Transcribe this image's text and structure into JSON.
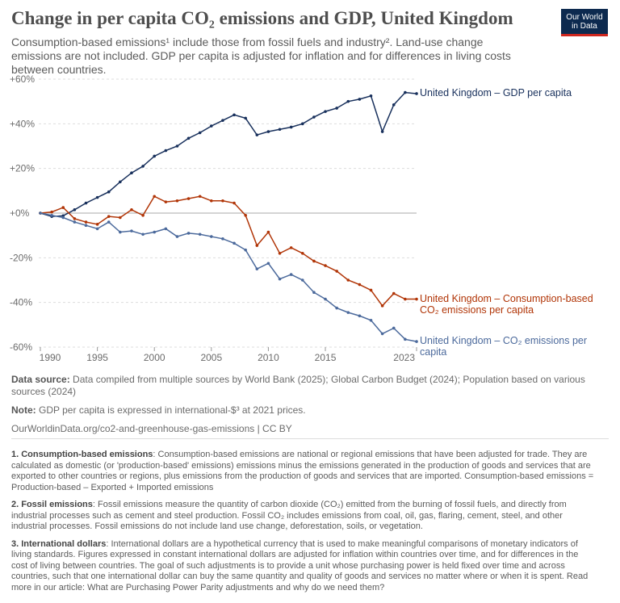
{
  "header": {
    "title": "Change in per capita CO₂ emissions and GDP, United Kingdom",
    "subtitle": "Consumption-based emissions¹ include those from fossil fuels and industry². Land-use change emissions are not included. GDP per capita is adjusted for inflation and for differences in living costs between countries.",
    "logo": [
      "Our World",
      "in Data"
    ]
  },
  "chart_data": {
    "type": "line",
    "x": [
      1990,
      1991,
      1992,
      1993,
      1994,
      1995,
      1996,
      1997,
      1998,
      1999,
      2000,
      2001,
      2002,
      2003,
      2004,
      2005,
      2006,
      2007,
      2008,
      2009,
      2010,
      2011,
      2012,
      2013,
      2014,
      2015,
      2016,
      2017,
      2018,
      2019,
      2020,
      2021,
      2022,
      2023
    ],
    "xlim": [
      1990,
      2023
    ],
    "xticks": [
      1990,
      1995,
      2000,
      2005,
      2010,
      2015,
      2023
    ],
    "ylim": [
      -60,
      60
    ],
    "yticks": [
      {
        "value": -60,
        "label": "-60%"
      },
      {
        "value": -40,
        "label": "-40%"
      },
      {
        "value": -20,
        "label": "-20%"
      },
      {
        "value": 0,
        "label": "+0%"
      },
      {
        "value": 20,
        "label": "+20%"
      },
      {
        "value": 40,
        "label": "+40%"
      },
      {
        "value": 60,
        "label": "+60%"
      }
    ],
    "grid": true,
    "series": [
      {
        "name": "United Kingdom – GDP per capita",
        "color": "#18305c",
        "values": [
          0,
          -1.5,
          -1.2,
          1.5,
          4.5,
          7,
          9.5,
          14,
          18,
          21,
          25.5,
          28,
          30,
          33.5,
          36,
          39,
          41.5,
          44,
          42.5,
          35,
          36.5,
          37.5,
          38.5,
          40,
          43,
          45.5,
          47,
          50,
          51,
          52.5,
          36.5,
          48.5,
          54,
          53.5
        ]
      },
      {
        "name": "United Kingdom – Consumption-based CO₂ emissions per capita",
        "color": "#b13507",
        "values": [
          0,
          0.5,
          2.5,
          -2.5,
          -4,
          -5,
          -1.5,
          -2,
          1.5,
          -1,
          7.5,
          5,
          5.5,
          6.5,
          7.5,
          5.5,
          5.5,
          4.5,
          -1,
          -14.5,
          -8.5,
          -18,
          -15.5,
          -18,
          -21.5,
          -23.5,
          -26,
          -30,
          -32,
          -34.5,
          -41.5,
          -36,
          -38.5,
          -38.5
        ]
      },
      {
        "name": "United Kingdom – CO₂ emissions per capita",
        "color": "#4c6a9c",
        "values": [
          0,
          -1,
          -2,
          -4,
          -5.5,
          -7,
          -4,
          -8.5,
          -8,
          -9.5,
          -8.5,
          -7,
          -10.5,
          -9,
          -9.5,
          -10.5,
          -11.5,
          -13.5,
          -16.5,
          -25,
          -22.5,
          -29.5,
          -27.5,
          -30,
          -35.5,
          -38.5,
          -42.5,
          -44.5,
          -46,
          -48,
          -54,
          -51.5,
          -56.5,
          -57.5
        ]
      }
    ]
  },
  "footer": {
    "source_label": "Data source:",
    "source": "Data compiled from multiple sources by World Bank (2025); Global Carbon Budget (2024); Population based on various sources (2024)",
    "note_label": "Note:",
    "note": "GDP per capita is expressed in international-$³ at 2021 prices.",
    "url": "OurWorldinData.org/co2-and-greenhouse-gas-emissions | CC BY"
  },
  "notes": [
    {
      "title": "1. Consumption-based emissions",
      "text": ": Consumption-based emissions are national or regional emissions that have been adjusted for trade. They are calculated as domestic (or 'production-based' emissions) emissions minus the emissions generated in the production of goods and services that are exported to other countries or regions, plus emissions from the production of goods and services that are imported. Consumption-based emissions = Production-based – Exported + Imported emissions"
    },
    {
      "title": "2. Fossil emissions",
      "text": ": Fossil emissions measure the quantity of carbon dioxide (CO₂) emitted from the burning of fossil fuels, and directly from industrial processes such as cement and steel production. Fossil CO₂ includes emissions from coal, oil, gas, flaring, cement, steel, and other industrial processes. Fossil emissions do not include land use change, deforestation, soils, or vegetation."
    },
    {
      "title": "3. International dollars",
      "text": ": International dollars are a hypothetical currency that is used to make meaningful comparisons of monetary indicators of living standards. Figures expressed in constant international dollars are adjusted for inflation within countries over time, and for differences in the cost of living between countries. The goal of such adjustments is to provide a unit whose purchasing power is held fixed over time and across countries, such that one international dollar can buy the same quantity and quality of goods and services no matter where or when it is spent. Read more in our article: What are Purchasing Power Parity adjustments and why do we need them?"
    }
  ]
}
